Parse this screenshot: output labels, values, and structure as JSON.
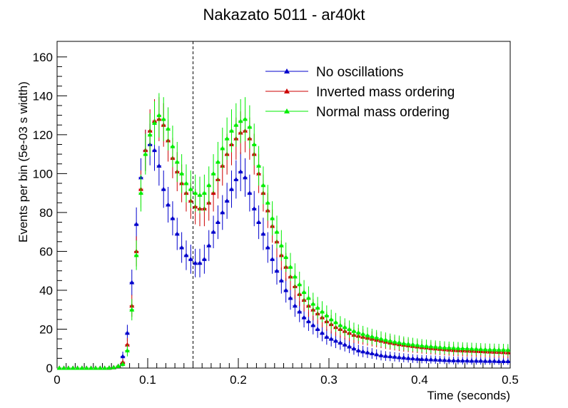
{
  "chart_data": {
    "type": "line",
    "title": "Nakazato 5011 - ar40kt",
    "xlabel": "Time (seconds)",
    "ylabel": "Events per bin (5e-03 s width)",
    "xlim": [
      0,
      0.5
    ],
    "ylim": [
      0,
      168
    ],
    "x_ticks": [
      "0",
      "0.1",
      "0.2",
      "0.3",
      "0.4",
      "0.5"
    ],
    "y_ticks": [
      "0",
      "20",
      "40",
      "60",
      "80",
      "100",
      "120",
      "140",
      "160"
    ],
    "grid": false,
    "legend_position": "top-right",
    "vertical_marker_x": 0.15,
    "bin_width": 0.005,
    "x": [
      0.0025,
      0.0075,
      0.0125,
      0.0175,
      0.0225,
      0.0275,
      0.0325,
      0.0375,
      0.0425,
      0.0475,
      0.0525,
      0.0575,
      0.0625,
      0.0675,
      0.0725,
      0.0775,
      0.0825,
      0.0875,
      0.0925,
      0.0975,
      0.1025,
      0.1075,
      0.1125,
      0.1175,
      0.1225,
      0.1275,
      0.1325,
      0.1375,
      0.1425,
      0.1475,
      0.1525,
      0.1575,
      0.1625,
      0.1675,
      0.1725,
      0.1775,
      0.1825,
      0.1875,
      0.1925,
      0.1975,
      0.2025,
      0.2075,
      0.2125,
      0.2175,
      0.2225,
      0.2275,
      0.2325,
      0.2375,
      0.2425,
      0.2475,
      0.2525,
      0.2575,
      0.2625,
      0.2675,
      0.2725,
      0.2775,
      0.2825,
      0.2875,
      0.2925,
      0.2975,
      0.3025,
      0.3075,
      0.3125,
      0.3175,
      0.3225,
      0.3275,
      0.3325,
      0.3375,
      0.3425,
      0.3475,
      0.3525,
      0.3575,
      0.3625,
      0.3675,
      0.3725,
      0.3775,
      0.3825,
      0.3875,
      0.3925,
      0.3975,
      0.4025,
      0.4075,
      0.4125,
      0.4175,
      0.4225,
      0.4275,
      0.4325,
      0.4375,
      0.4425,
      0.4475,
      0.4525,
      0.4575,
      0.4625,
      0.4675,
      0.4725,
      0.4775,
      0.4825,
      0.4875,
      0.4925,
      0.4975
    ],
    "series": [
      {
        "name": "No oscillations",
        "color": "#0000cc",
        "values": [
          0,
          0,
          0,
          0,
          0,
          0,
          0,
          0,
          0,
          0,
          0,
          0.1,
          0.3,
          1,
          6,
          18,
          44,
          74,
          98,
          112,
          115,
          112,
          104,
          92,
          84,
          77,
          69,
          62,
          58,
          56,
          54,
          54,
          56,
          63,
          70,
          75,
          80,
          86,
          92,
          97,
          101,
          98,
          90,
          82,
          75,
          69,
          62,
          56,
          50,
          45,
          40,
          36,
          32,
          29,
          26,
          24,
          22,
          20,
          18,
          16,
          15,
          14,
          13,
          12,
          11,
          10,
          9,
          8.5,
          8,
          7.5,
          7,
          6.5,
          6.2,
          6,
          5.8,
          5.5,
          5.3,
          5.1,
          4.9,
          4.7,
          4.6,
          4.5,
          4.4,
          4.3,
          4.2,
          4.1,
          4,
          3.9,
          3.9,
          3.8,
          3.8,
          3.7,
          3.7,
          3.7,
          3.6,
          3.6,
          3.6,
          3.5,
          3.5,
          3.5
        ]
      },
      {
        "name": "Inverted mass ordering",
        "color": "#cc0000",
        "values": [
          0,
          0,
          0,
          0,
          0,
          0,
          0,
          0,
          0,
          0,
          0,
          0.1,
          0.3,
          1,
          3,
          12,
          32,
          60,
          92,
          112,
          122,
          127,
          128,
          125,
          117,
          108,
          101,
          95,
          90,
          86,
          83,
          82,
          82,
          85,
          90,
          97,
          104,
          110,
          115,
          118,
          121,
          122,
          118,
          110,
          100,
          90,
          81,
          73,
          65,
          58,
          52,
          47,
          42,
          38,
          35,
          32,
          30,
          28,
          26,
          24,
          22.5,
          21,
          20,
          19,
          18,
          17,
          16.5,
          16,
          15.5,
          15,
          14.5,
          14,
          13.5,
          13,
          12.6,
          12.2,
          11.9,
          11.6,
          11.3,
          11,
          10.7,
          10.5,
          10.2,
          10,
          9.8,
          9.6,
          9.4,
          9.2,
          9.1,
          9,
          8.9,
          8.8,
          8.7,
          8.6,
          8.5,
          8.4,
          8.3,
          8.2,
          8.1,
          8
        ]
      },
      {
        "name": "Normal mass ordering",
        "color": "#00ee00",
        "values": [
          0,
          0,
          0,
          0,
          0,
          0,
          0,
          0,
          0,
          0,
          0,
          0.1,
          0.3,
          1,
          2,
          9,
          30,
          58,
          90,
          110,
          120,
          126,
          130,
          128,
          123,
          114,
          106,
          100,
          95,
          92,
          90,
          89,
          90,
          94,
          100,
          106,
          113,
          118,
          122,
          125,
          127,
          128,
          124,
          115,
          104,
          94,
          85,
          77,
          70,
          63,
          57,
          52,
          47,
          43,
          39,
          36,
          33,
          31,
          29,
          27,
          25,
          23.5,
          22,
          21,
          20,
          19,
          18.2,
          17.5,
          16.8,
          16.2,
          15.6,
          15,
          14.5,
          14,
          13.5,
          13.1,
          12.7,
          12.4,
          12.1,
          11.8,
          11.5,
          11.3,
          11.1,
          10.9,
          10.7,
          10.5,
          10.4,
          10.3,
          10.2,
          10.1,
          10,
          9.9,
          9.8,
          9.7,
          9.6,
          9.5,
          9.5,
          9.4,
          9.4,
          9.3
        ]
      }
    ]
  }
}
